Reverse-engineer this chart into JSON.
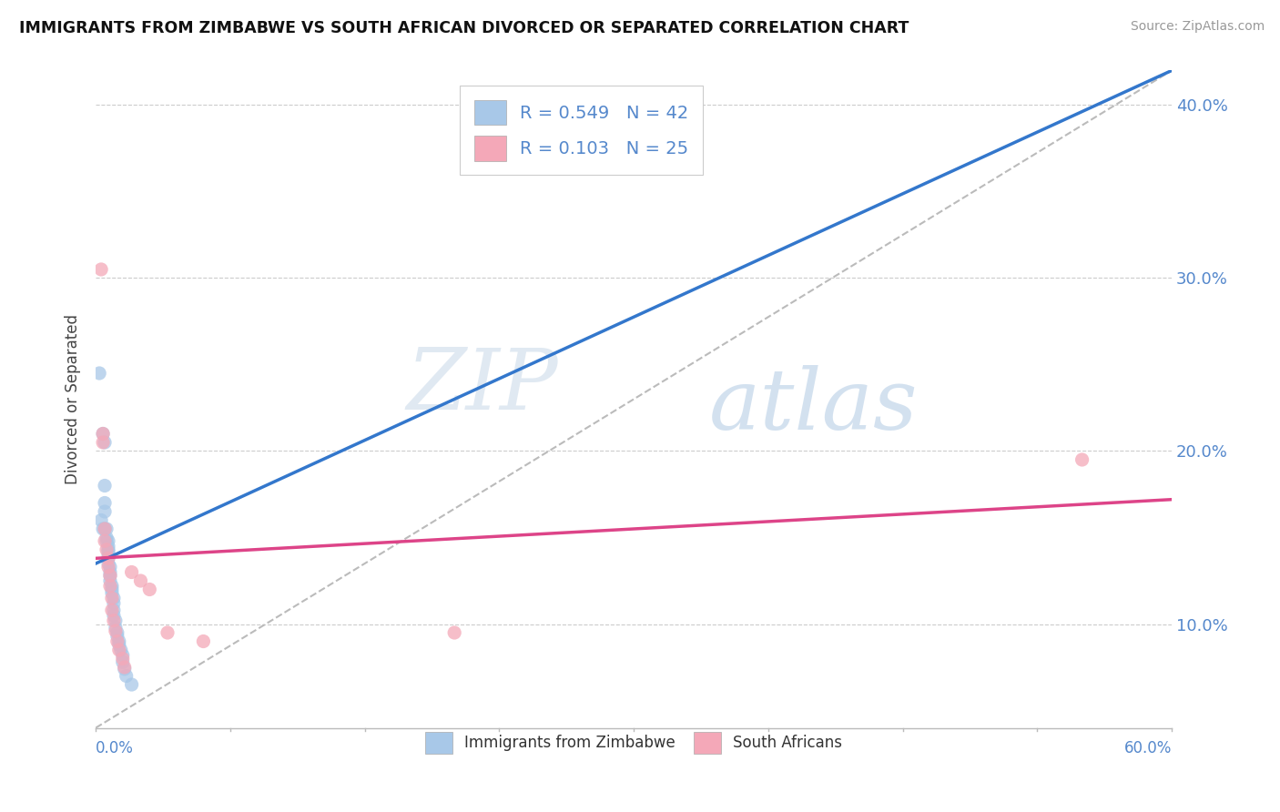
{
  "title": "IMMIGRANTS FROM ZIMBABWE VS SOUTH AFRICAN DIVORCED OR SEPARATED CORRELATION CHART",
  "source": "Source: ZipAtlas.com",
  "ylabel": "Divorced or Separated",
  "xmin": 0.0,
  "xmax": 0.6,
  "ymin": 0.04,
  "ymax": 0.42,
  "yticks": [
    0.1,
    0.2,
    0.3,
    0.4
  ],
  "ytick_labels": [
    "10.0%",
    "20.0%",
    "30.0%",
    "40.0%"
  ],
  "legend_labels": [
    "Immigrants from Zimbabwe",
    "South Africans"
  ],
  "R_blue": 0.549,
  "N_blue": 42,
  "R_pink": 0.103,
  "N_pink": 25,
  "blue_color": "#a8c8e8",
  "pink_color": "#f4a8b8",
  "blue_line_color": "#3377cc",
  "pink_line_color": "#dd4488",
  "blue_scatter": [
    [
      0.002,
      0.245
    ],
    [
      0.003,
      0.16
    ],
    [
      0.004,
      0.155
    ],
    [
      0.004,
      0.21
    ],
    [
      0.005,
      0.205
    ],
    [
      0.005,
      0.18
    ],
    [
      0.005,
      0.17
    ],
    [
      0.005,
      0.165
    ],
    [
      0.005,
      0.155
    ],
    [
      0.006,
      0.155
    ],
    [
      0.006,
      0.15
    ],
    [
      0.006,
      0.148
    ],
    [
      0.007,
      0.148
    ],
    [
      0.007,
      0.145
    ],
    [
      0.007,
      0.143
    ],
    [
      0.007,
      0.142
    ],
    [
      0.007,
      0.14
    ],
    [
      0.007,
      0.138
    ],
    [
      0.007,
      0.135
    ],
    [
      0.008,
      0.133
    ],
    [
      0.008,
      0.13
    ],
    [
      0.008,
      0.128
    ],
    [
      0.008,
      0.125
    ],
    [
      0.009,
      0.122
    ],
    [
      0.009,
      0.12
    ],
    [
      0.009,
      0.118
    ],
    [
      0.01,
      0.115
    ],
    [
      0.01,
      0.112
    ],
    [
      0.01,
      0.108
    ],
    [
      0.01,
      0.105
    ],
    [
      0.011,
      0.102
    ],
    [
      0.011,
      0.098
    ],
    [
      0.012,
      0.095
    ],
    [
      0.012,
      0.093
    ],
    [
      0.013,
      0.09
    ],
    [
      0.013,
      0.088
    ],
    [
      0.014,
      0.085
    ],
    [
      0.015,
      0.082
    ],
    [
      0.015,
      0.078
    ],
    [
      0.016,
      0.074
    ],
    [
      0.017,
      0.07
    ],
    [
      0.02,
      0.065
    ]
  ],
  "pink_scatter": [
    [
      0.003,
      0.305
    ],
    [
      0.004,
      0.21
    ],
    [
      0.004,
      0.205
    ],
    [
      0.005,
      0.155
    ],
    [
      0.005,
      0.148
    ],
    [
      0.006,
      0.143
    ],
    [
      0.007,
      0.138
    ],
    [
      0.007,
      0.133
    ],
    [
      0.008,
      0.128
    ],
    [
      0.008,
      0.122
    ],
    [
      0.009,
      0.115
    ],
    [
      0.009,
      0.108
    ],
    [
      0.01,
      0.102
    ],
    [
      0.011,
      0.096
    ],
    [
      0.012,
      0.09
    ],
    [
      0.013,
      0.085
    ],
    [
      0.015,
      0.08
    ],
    [
      0.016,
      0.075
    ],
    [
      0.02,
      0.13
    ],
    [
      0.025,
      0.125
    ],
    [
      0.03,
      0.12
    ],
    [
      0.04,
      0.095
    ],
    [
      0.06,
      0.09
    ],
    [
      0.2,
      0.095
    ],
    [
      0.55,
      0.195
    ]
  ],
  "blue_trend_x": [
    0.0,
    0.6
  ],
  "blue_trend_y": [
    0.135,
    0.42
  ],
  "pink_trend_x": [
    0.0,
    0.6
  ],
  "pink_trend_y": [
    0.138,
    0.172
  ],
  "ref_line_x": [
    0.0,
    0.6
  ],
  "ref_line_y": [
    0.04,
    0.42
  ],
  "watermark_zip": "ZIP",
  "watermark_atlas": "atlas",
  "background_color": "#ffffff",
  "grid_color": "#cccccc",
  "grid_style": "--"
}
